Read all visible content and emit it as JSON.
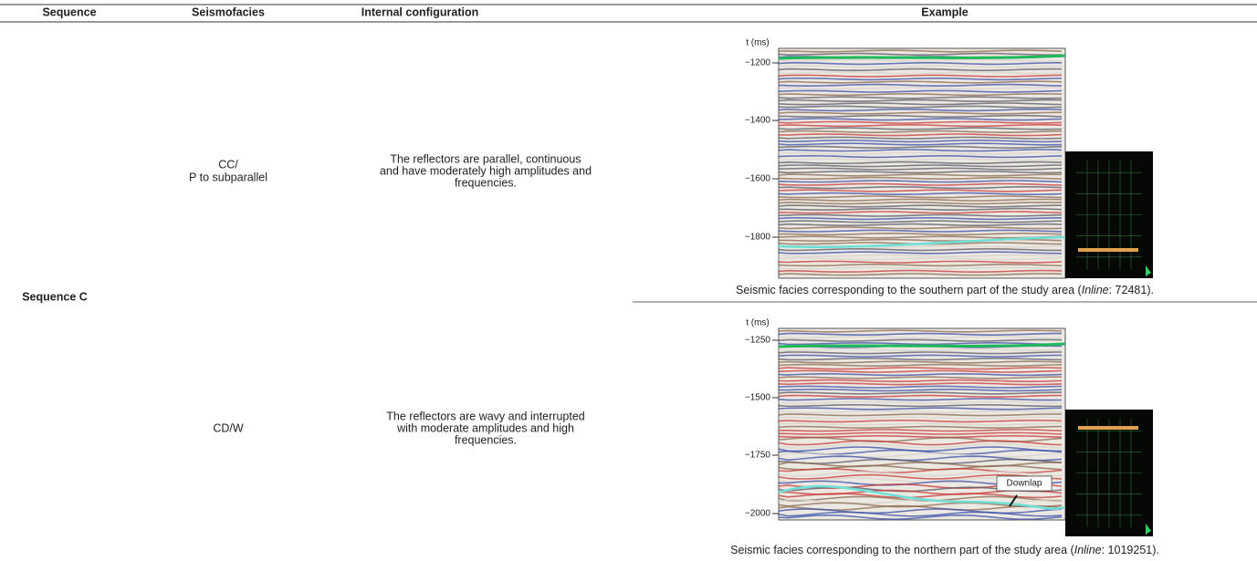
{
  "table": {
    "header": [
      "Sequence",
      "Seismofacies",
      "Internal configuration",
      "Example"
    ],
    "sequence_group": "Sequence C",
    "rows": [
      {
        "seismofacies": [
          "CC/",
          "P to subparallel"
        ],
        "configuration": [
          "The reflectors are parallel, continuous",
          "and have moderately high amplitudes and",
          "frequencies."
        ],
        "example": {
          "axis_label": "t (ms)",
          "ticks": [
            "−1200",
            "−1400",
            "−1600",
            "−1800"
          ],
          "caption": {
            "prefix": "Seismic facies corresponding to the southern part of the study area (",
            "italic": "Inline",
            "suffix": ": 72481)."
          }
        }
      },
      {
        "seismofacies": [
          "CD/W"
        ],
        "configuration": [
          "The reflectors are wavy and interrupted",
          "with moderate amplitudes and high",
          "frequencies."
        ],
        "example": {
          "axis_label": "t (ms)",
          "ticks": [
            "−1250",
            "−1500",
            "−1750",
            "−2000"
          ],
          "annotation": "Downlap",
          "caption": {
            "prefix": "Seismic facies corresponding to the northern part of the study area (",
            "italic": "Inline",
            "suffix": ": 1019251)."
          }
        }
      }
    ]
  }
}
